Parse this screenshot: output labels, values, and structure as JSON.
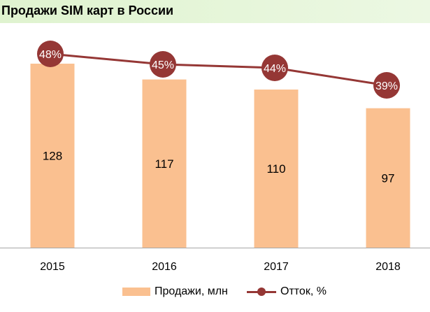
{
  "title": "Продажи SIM карт в России",
  "colors": {
    "bar": "#fac090",
    "line": "#953735",
    "axis": "#a6a6a6"
  },
  "chart_data": {
    "type": "bar+line",
    "categories": [
      "2015",
      "2016",
      "2017",
      "2018"
    ],
    "series": [
      {
        "name": "Продажи, млн",
        "type": "bar",
        "values": [
          128,
          117,
          110,
          97
        ]
      },
      {
        "name": "Отток, %",
        "type": "line",
        "values": [
          48,
          45,
          44,
          39
        ]
      }
    ],
    "bar_labels": [
      "128",
      "117",
      "110",
      "97"
    ],
    "line_labels": [
      "48%",
      "45%",
      "44%",
      "39%"
    ],
    "legend_position": "bottom"
  }
}
